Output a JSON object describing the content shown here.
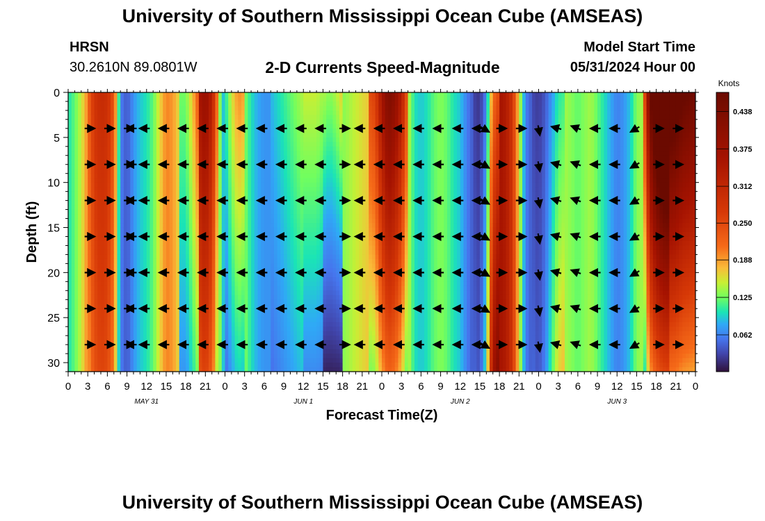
{
  "page": {
    "title": "University of Southern Mississippi Ocean Cube (AMSEAS)",
    "footer_title": "University of Southern Mississippi Ocean Cube (AMSEAS)",
    "station_code": "HRSN",
    "station_coords": "30.2610N  89.0801W",
    "model_start_label": "Model Start Time",
    "model_start_value": "05/31/2024 Hour 00"
  },
  "chart_data": {
    "type": "heatmap",
    "title": "2-D Currents Speed-Magnitude",
    "xlabel": "Forecast Time(Z)",
    "ylabel": "Depth (ft)",
    "colorbar_label": "Knots",
    "x_range_hours": [
      0,
      96
    ],
    "y_range_ft": [
      0,
      31
    ],
    "x_tick_labels": [
      "0",
      "3",
      "6",
      "9",
      "12",
      "15",
      "18",
      "21",
      "0",
      "3",
      "6",
      "9",
      "12",
      "15",
      "18",
      "21",
      "0",
      "3",
      "6",
      "9",
      "12",
      "15",
      "18",
      "21",
      "0",
      "3",
      "6",
      "9",
      "12",
      "15",
      "18",
      "21",
      "0"
    ],
    "day_labels": [
      {
        "label": "MAY 31",
        "hour": 12
      },
      {
        "label": "JUN 1",
        "hour": 36
      },
      {
        "label": "JUN 2",
        "hour": 60
      },
      {
        "label": "JUN 3",
        "hour": 84
      }
    ],
    "y_ticks": [
      0,
      5,
      10,
      15,
      20,
      25,
      30
    ],
    "y_tick_labels": [
      "0",
      "5",
      "10",
      "15",
      "20",
      "25",
      "30"
    ],
    "colorbar_range": [
      0.0,
      0.47
    ],
    "colorbar_ticks": [
      0.062,
      0.125,
      0.188,
      0.25,
      0.312,
      0.375,
      0.438
    ],
    "colorbar_tick_labels": [
      "0.062",
      "0.125",
      "0.188",
      "0.250",
      "0.312",
      "0.375",
      "0.438"
    ],
    "colorbar_stops": [
      {
        "v": 0.0,
        "c": "#30123b"
      },
      {
        "v": 0.03,
        "c": "#4145ab"
      },
      {
        "v": 0.055,
        "c": "#4675ed"
      },
      {
        "v": 0.08,
        "c": "#2fa9f6"
      },
      {
        "v": 0.1,
        "c": "#1ae4b6"
      },
      {
        "v": 0.125,
        "c": "#72fe5e"
      },
      {
        "v": 0.15,
        "c": "#c8ef34"
      },
      {
        "v": 0.175,
        "c": "#fabb39"
      },
      {
        "v": 0.21,
        "c": "#f66b19"
      },
      {
        "v": 0.27,
        "c": "#d63807"
      },
      {
        "v": 0.36,
        "c": "#a51301"
      },
      {
        "v": 0.47,
        "c": "#6b0a00"
      }
    ],
    "speed_profile_hours": [
      0,
      1,
      2,
      3,
      4,
      5,
      6,
      7,
      8,
      9,
      10,
      11,
      12,
      13,
      14,
      15,
      16,
      17,
      18,
      19,
      20,
      21,
      22,
      23,
      24,
      25,
      26,
      27,
      28,
      29,
      30,
      31,
      32,
      33,
      34,
      35,
      36,
      37,
      38,
      39,
      40,
      41,
      42,
      43,
      44,
      45,
      46,
      47,
      48,
      49,
      50,
      51,
      52,
      53,
      54,
      55,
      56,
      57,
      58,
      59,
      60,
      61,
      62,
      63,
      64,
      65,
      66,
      67,
      68,
      69,
      70,
      71,
      72,
      73,
      74,
      75,
      76,
      77,
      78,
      79,
      80,
      81,
      82,
      83,
      84,
      85,
      86,
      87,
      88,
      89,
      90,
      91,
      92,
      93,
      94,
      95,
      96
    ],
    "speed_profile_knots": [
      0.1,
      0.12,
      0.15,
      0.2,
      0.26,
      0.28,
      0.27,
      0.22,
      0.06,
      0.04,
      0.07,
      0.09,
      0.1,
      0.12,
      0.16,
      0.2,
      0.19,
      0.16,
      0.16,
      0.22,
      0.3,
      0.33,
      0.28,
      0.15,
      0.07,
      0.11,
      0.14,
      0.13,
      0.1,
      0.08,
      0.07,
      0.07,
      0.08,
      0.09,
      0.1,
      0.11,
      0.12,
      0.12,
      0.12,
      0.11,
      0.1,
      0.11,
      0.13,
      0.14,
      0.15,
      0.16,
      0.17,
      0.18,
      0.25,
      0.3,
      0.28,
      0.23,
      0.15,
      0.1,
      0.09,
      0.1,
      0.12,
      0.13,
      0.12,
      0.1,
      0.09,
      0.06,
      0.04,
      0.03,
      0.09,
      0.3,
      0.36,
      0.34,
      0.28,
      0.16,
      0.06,
      0.04,
      0.03,
      0.05,
      0.09,
      0.13,
      0.14,
      0.13,
      0.12,
      0.13,
      0.14,
      0.12,
      0.1,
      0.08,
      0.06,
      0.07,
      0.09,
      0.13,
      0.14,
      0.34,
      0.42,
      0.46,
      0.47,
      0.46,
      0.43,
      0.42,
      0.41
    ],
    "depth_modifiers": [
      {
        "h0": 3,
        "h1": 8,
        "surface": 1.08,
        "bottom": 0.92
      },
      {
        "h0": 17,
        "h1": 20,
        "surface": 0.78,
        "bottom": 0.45
      },
      {
        "h0": 20,
        "h1": 23,
        "surface": 1.18,
        "bottom": 0.8
      },
      {
        "h0": 24,
        "h1": 27,
        "surface": 1.4,
        "bottom": 0.7
      },
      {
        "h0": 31,
        "h1": 36,
        "surface": 1.2,
        "bottom": 0.75
      },
      {
        "h0": 36,
        "h1": 39,
        "surface": 1.25,
        "bottom": 0.55
      },
      {
        "h0": 39,
        "h1": 42,
        "surface": 1.3,
        "bottom": 0.1
      },
      {
        "h0": 46,
        "h1": 52,
        "surface": 1.45,
        "bottom": 0.75
      },
      {
        "h0": 62,
        "h1": 66,
        "surface": 0.7,
        "bottom": 1.2
      },
      {
        "h0": 71,
        "h1": 76,
        "surface": 0.8,
        "bottom": 1.25
      },
      {
        "h0": 88,
        "h1": 92,
        "surface": 1.35,
        "bottom": 0.55
      },
      {
        "h0": 92,
        "h1": 96,
        "surface": 1.12,
        "bottom": 0.45
      }
    ],
    "arrow_depths_ft": [
      4,
      8,
      12,
      16,
      20,
      24,
      28
    ],
    "arrow_hours": [
      3,
      6,
      9,
      10,
      12,
      15,
      18,
      21,
      24,
      27,
      30,
      33,
      36,
      39,
      42,
      45,
      48,
      51,
      54,
      57,
      60,
      63,
      63.5,
      66,
      69,
      72,
      75,
      78,
      81,
      84,
      87,
      90,
      93,
      96
    ],
    "arrow_direction_profile_deg": [
      {
        "hour": 3,
        "deg": 0
      },
      {
        "hour": 6,
        "deg": 0
      },
      {
        "hour": 9,
        "deg": 0
      },
      {
        "hour": 10,
        "deg": 180
      },
      {
        "hour": 12,
        "deg": 180
      },
      {
        "hour": 15,
        "deg": 180
      },
      {
        "hour": 18,
        "deg": 180
      },
      {
        "hour": 21,
        "deg": 180
      },
      {
        "hour": 24,
        "deg": 180
      },
      {
        "hour": 27,
        "deg": 180
      },
      {
        "hour": 30,
        "deg": 180
      },
      {
        "hour": 33,
        "deg": 180
      },
      {
        "hour": 36,
        "deg": 180
      },
      {
        "hour": 39,
        "deg": 180
      },
      {
        "hour": 42,
        "deg": 0
      },
      {
        "hour": 45,
        "deg": 180
      },
      {
        "hour": 48,
        "deg": 180
      },
      {
        "hour": 51,
        "deg": 180
      },
      {
        "hour": 54,
        "deg": 180
      },
      {
        "hour": 57,
        "deg": 180
      },
      {
        "hour": 60,
        "deg": 180
      },
      {
        "hour": 63,
        "deg": 180
      },
      {
        "hour": 63.5,
        "deg": -30
      },
      {
        "hour": 66,
        "deg": 0
      },
      {
        "hour": 69,
        "deg": 0
      },
      {
        "hour": 72,
        "deg": -80
      },
      {
        "hour": 75,
        "deg": 165
      },
      {
        "hour": 78,
        "deg": 160
      },
      {
        "hour": 81,
        "deg": 180
      },
      {
        "hour": 84,
        "deg": 180
      },
      {
        "hour": 87,
        "deg": 210
      },
      {
        "hour": 90,
        "deg": 0
      },
      {
        "hour": 93,
        "deg": 0
      },
      {
        "hour": 96,
        "deg": 0
      }
    ]
  }
}
